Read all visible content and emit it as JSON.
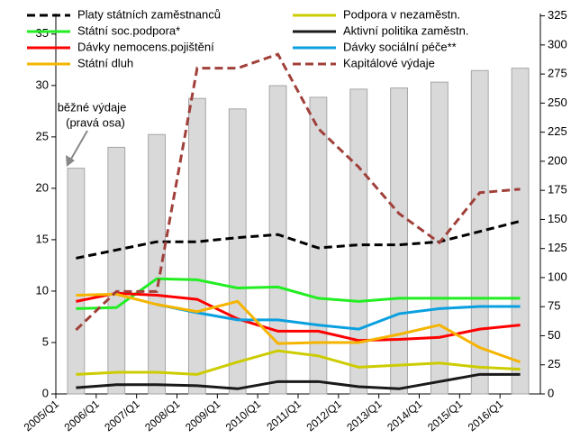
{
  "chart_data": {
    "type": "bar-line",
    "categories": [
      "2005/Q1",
      "2006/Q1",
      "2007/Q1",
      "2008/Q1",
      "2009/Q1",
      "2010/Q1",
      "2011/Q1",
      "2012/Q1",
      "2013/Q1",
      "2014/Q1",
      "2015/Q1",
      "2016/Q1"
    ],
    "bars": {
      "color": "#d9d9d9",
      "axis": "y2",
      "values": [
        194,
        212,
        223,
        254,
        245,
        265,
        255,
        262,
        263,
        268,
        278,
        280
      ]
    },
    "annotation": [
      "běžné výdaje",
      "(pravá osa)"
    ],
    "series": [
      {
        "name": "Platy státních zaměstnanců",
        "color": "#000000",
        "dash": true,
        "values": [
          13.2,
          14,
          14.8,
          14.8,
          15.2,
          15.5,
          14.2,
          14.5,
          14.5,
          14.8,
          15.8,
          16.8
        ]
      },
      {
        "name": "Podpora v nezaměstn.",
        "color": "#cccc00",
        "values": [
          1.9,
          2.1,
          2.1,
          1.9,
          3.1,
          4.2,
          3.7,
          2.6,
          2.8,
          3.0,
          2.6,
          2.4
        ]
      },
      {
        "name": "Státní soc.podpora*",
        "color": "#22ee22",
        "values": [
          8.3,
          8.4,
          11.2,
          11.1,
          10.3,
          10.4,
          9.3,
          9.0,
          9.3,
          9.3,
          9.3,
          9.3
        ]
      },
      {
        "name": "Aktivní politika zaměstn.",
        "color": "#1a1a1a",
        "values": [
          0.6,
          0.9,
          0.9,
          0.8,
          0.5,
          1.2,
          1.2,
          0.7,
          0.5,
          1.2,
          1.9,
          1.9
        ]
      },
      {
        "name": "Dávky nemocens.pojištění",
        "color": "#ff0000",
        "values": [
          9.0,
          9.8,
          9.6,
          9.2,
          7.3,
          6.1,
          6.1,
          5.2,
          5.3,
          5.5,
          6.3,
          6.7
        ]
      },
      {
        "name": "Dávky sociální péče**",
        "color": "#0aa0e0",
        "values": [
          null,
          null,
          8.7,
          7.9,
          7.2,
          7.2,
          6.7,
          6.3,
          7.8,
          8.3,
          8.5,
          8.5
        ]
      },
      {
        "name": "Státní dluh",
        "color": "#f5b400",
        "values": [
          9.6,
          9.7,
          8.7,
          8.0,
          9.0,
          4.9,
          5.0,
          5.0,
          5.8,
          6.7,
          4.5,
          3.1
        ]
      },
      {
        "name": "Kapitálové výdaje",
        "color": "#a0403a",
        "dash": true,
        "axis": "y2",
        "values": [
          55,
          88,
          88,
          280,
          280,
          292,
          228,
          195,
          155,
          130,
          173,
          176
        ]
      }
    ],
    "ylim": [
      0,
      37
    ],
    "yticks": [
      0,
      5,
      10,
      15,
      20,
      25,
      30,
      35
    ],
    "y2lim": [
      0,
      327
    ],
    "y2ticks": [
      0,
      25,
      50,
      75,
      100,
      125,
      150,
      175,
      200,
      225,
      250,
      275,
      300,
      325
    ],
    "grid": false
  }
}
